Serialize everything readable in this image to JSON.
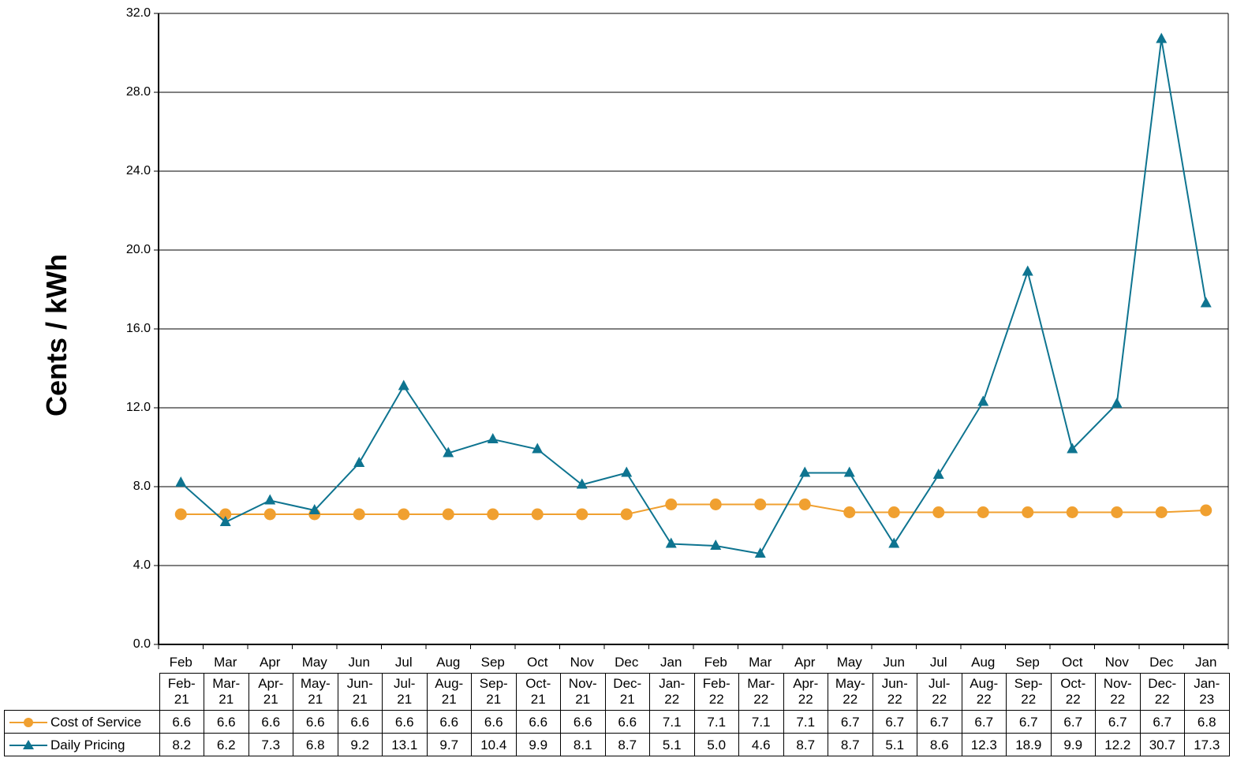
{
  "chart_data": {
    "type": "line",
    "title": "",
    "xlabel": "",
    "ylabel": "Cents / kWh",
    "ylim": [
      0,
      32
    ],
    "yticks": [
      "0.0",
      "4.0",
      "8.0",
      "12.0",
      "16.0",
      "20.0",
      "24.0",
      "28.0",
      "32.0"
    ],
    "grid": true,
    "legend_position": "data-table-left",
    "categories": [
      "Feb",
      "Mar",
      "Apr",
      "May",
      "Jun",
      "Jul",
      "Aug",
      "Sep",
      "Oct",
      "Nov",
      "Dec",
      "Jan",
      "Feb",
      "Mar",
      "Apr",
      "May",
      "Jun",
      "Jul",
      "Aug",
      "Sep",
      "Oct",
      "Nov",
      "Dec",
      "Jan"
    ],
    "table_headers": [
      [
        "Feb-",
        "21"
      ],
      [
        "Mar-",
        "21"
      ],
      [
        "Apr-",
        "21"
      ],
      [
        "May-",
        "21"
      ],
      [
        "Jun-",
        "21"
      ],
      [
        "Jul-",
        "21"
      ],
      [
        "Aug-",
        "21"
      ],
      [
        "Sep-",
        "21"
      ],
      [
        "Oct-",
        "21"
      ],
      [
        "Nov-",
        "21"
      ],
      [
        "Dec-",
        "21"
      ],
      [
        "Jan-",
        "22"
      ],
      [
        "Feb-",
        "22"
      ],
      [
        "Mar-",
        "22"
      ],
      [
        "Apr-",
        "22"
      ],
      [
        "May-",
        "22"
      ],
      [
        "Jun-",
        "22"
      ],
      [
        "Jul-",
        "22"
      ],
      [
        "Aug-",
        "22"
      ],
      [
        "Sep-",
        "22"
      ],
      [
        "Oct-",
        "22"
      ],
      [
        "Nov-",
        "22"
      ],
      [
        "Dec-",
        "22"
      ],
      [
        "Jan-",
        "23"
      ]
    ],
    "series": [
      {
        "name": "Cost of Service",
        "color": "#F0A030",
        "marker": "circle",
        "values": [
          6.6,
          6.6,
          6.6,
          6.6,
          6.6,
          6.6,
          6.6,
          6.6,
          6.6,
          6.6,
          6.6,
          7.1,
          7.1,
          7.1,
          7.1,
          6.7,
          6.7,
          6.7,
          6.7,
          6.7,
          6.7,
          6.7,
          6.7,
          6.8
        ]
      },
      {
        "name": "Daily Pricing",
        "color": "#0E7490",
        "marker": "triangle",
        "values": [
          8.2,
          6.2,
          7.3,
          6.8,
          9.2,
          13.1,
          9.7,
          10.4,
          9.9,
          8.1,
          8.7,
          5.1,
          5.0,
          4.6,
          8.7,
          8.7,
          5.1,
          8.6,
          12.3,
          18.9,
          9.9,
          12.2,
          30.7,
          17.3
        ]
      }
    ]
  }
}
